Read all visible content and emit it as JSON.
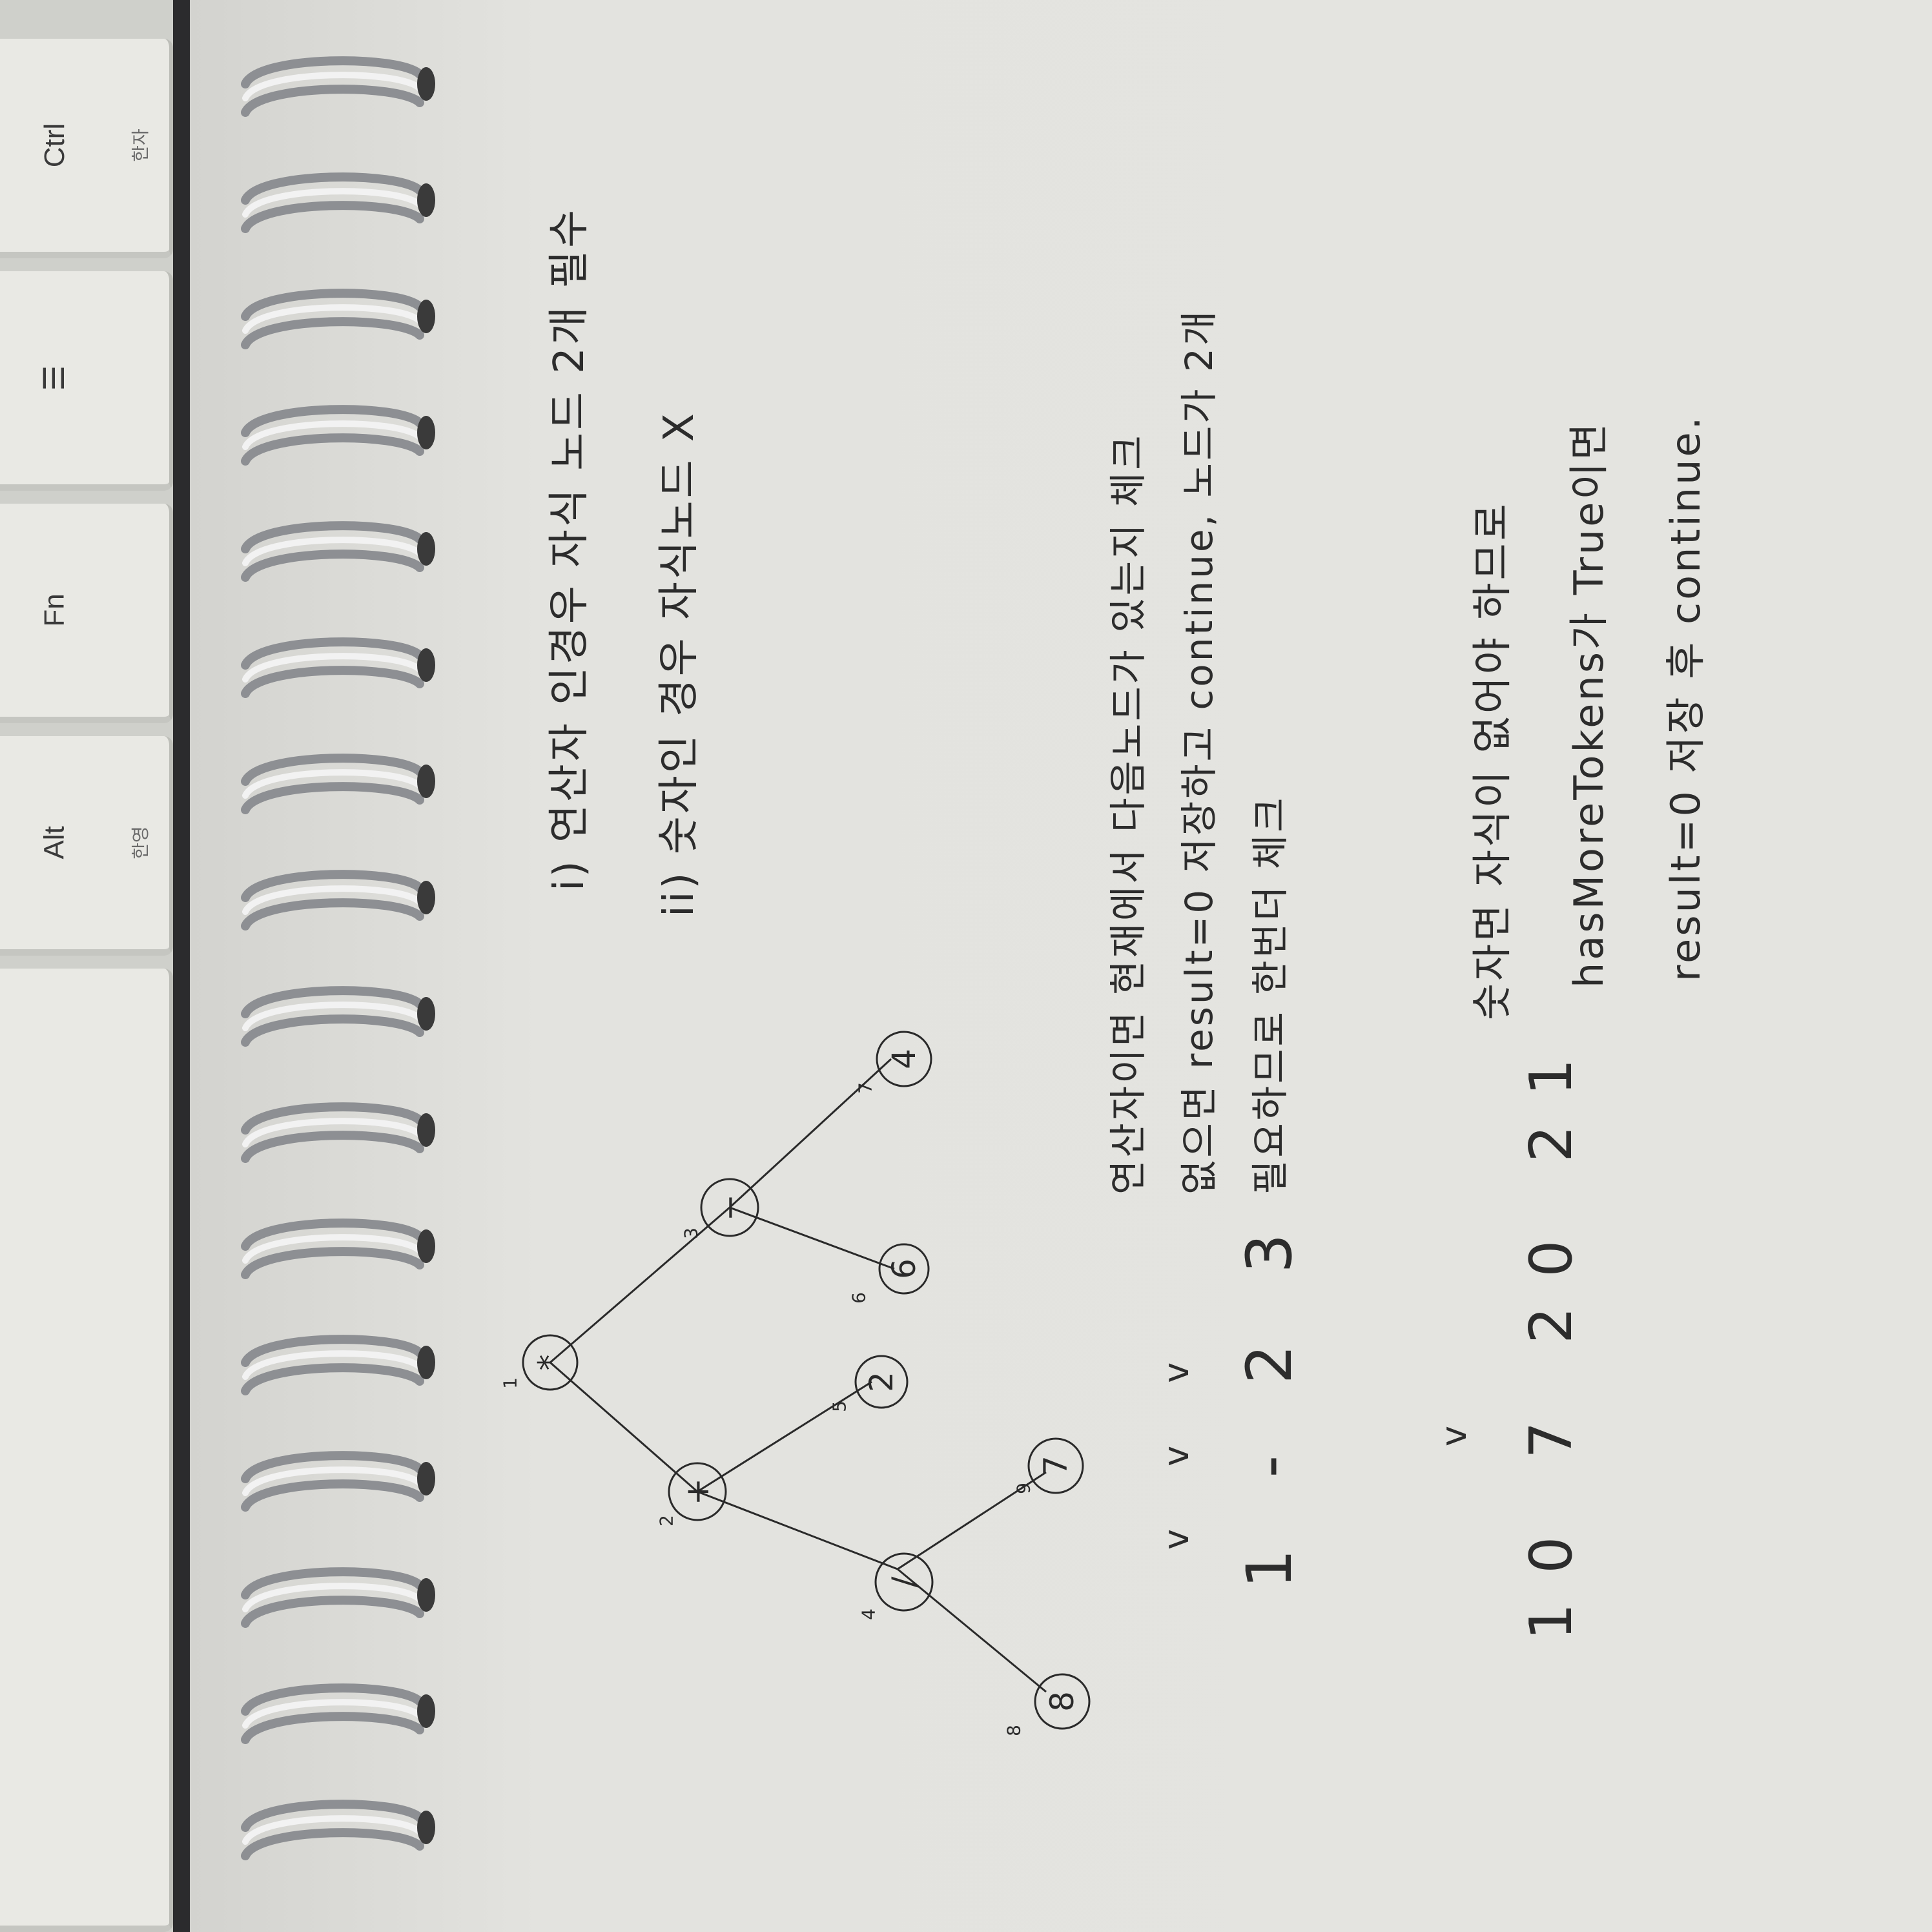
{
  "keyboard": {
    "keys": [
      {
        "label": "Ctrl",
        "sublabel": "한자"
      },
      {
        "label": "☰",
        "sublabel": ""
      },
      {
        "label": "Fn",
        "sublabel": ""
      },
      {
        "label": "Alt",
        "sublabel": "한영"
      },
      {
        "label": "",
        "sublabel": ""
      }
    ]
  },
  "notes": {
    "rules": [
      "i) 연산자 인경우 자식 노드 2개 필수",
      "ii) 숫자인 경우 자식노드 X"
    ],
    "operator_note": [
      "연산자이면 현재에서 다음노드가 있는지 체크",
      "없으면 result=0 저장하고 continue, 노드가 2개",
      "필요하므로 한번더 체크"
    ],
    "number_note": [
      "숫자면 자식이 없어야 하므로",
      "hasMoreTokens가 True이면",
      "result=0 저장 후 continue."
    ],
    "example1": {
      "sequence": "1 - 2 3",
      "marks": "v v v"
    },
    "example2": {
      "sequence": "10 7 20 21",
      "marks": "v"
    }
  },
  "tree": {
    "nodes": [
      {
        "id": "n1",
        "label": "*",
        "order": "1"
      },
      {
        "id": "n2",
        "label": "+",
        "order": "2"
      },
      {
        "id": "n3",
        "label": "−",
        "order": "3"
      },
      {
        "id": "n4",
        "label": "/",
        "order": "4"
      },
      {
        "id": "n5",
        "label": "2",
        "order": "5"
      },
      {
        "id": "n6",
        "label": "6",
        "order": "6"
      },
      {
        "id": "n7",
        "label": "4",
        "order": "7"
      },
      {
        "id": "n8",
        "label": "8",
        "order": "8"
      },
      {
        "id": "n9",
        "label": "7",
        "order": "9"
      }
    ]
  }
}
